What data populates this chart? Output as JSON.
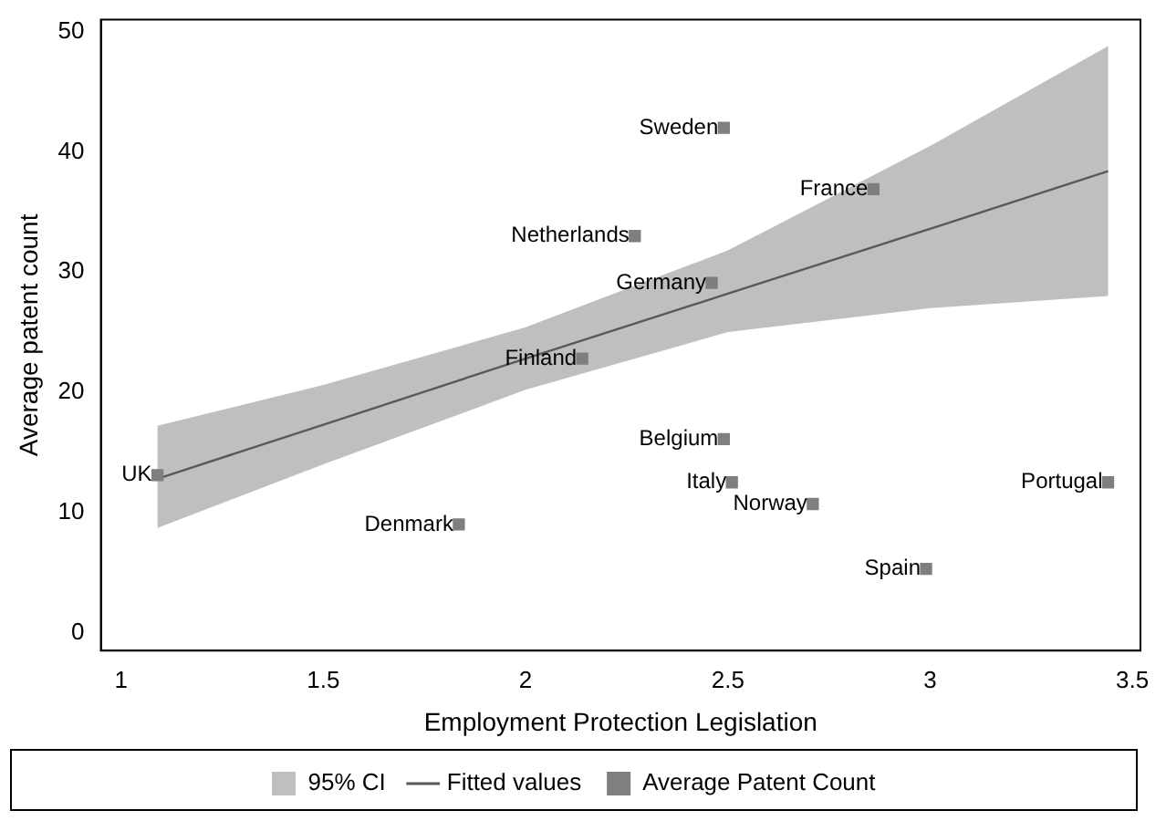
{
  "chart_data": {
    "type": "scatter",
    "xlabel": "Employment Protection Legislation",
    "ylabel": "Average patent count",
    "xlim": [
      0.95,
      3.52
    ],
    "xticks": [
      1,
      1.5,
      2,
      2.5,
      3,
      3.5
    ],
    "ylim": [
      -1.5,
      51
    ],
    "yticks": [
      0,
      10,
      20,
      30,
      40,
      50
    ],
    "legend": "bottom",
    "series": [
      {
        "name": "Fitted values",
        "type": "line",
        "marker": "none",
        "color": "#595959",
        "x": [
          1.09,
          1.5,
          2.0,
          2.5,
          3.0,
          3.44
        ],
        "values": [
          12.8,
          17.3,
          22.8,
          28.2,
          33.6,
          38.4
        ],
        "lower": [
          8.7,
          14.0,
          20.2,
          25.0,
          27.0,
          28.0
        ],
        "upper": [
          17.2,
          20.6,
          25.4,
          31.8,
          40.5,
          48.8
        ]
      },
      {
        "name": "Average Patent Count",
        "type": "scatter",
        "marker": "square",
        "color": "#7f7f7f",
        "x": [
          1.09,
          1.835,
          2.14,
          2.27,
          2.46,
          2.49,
          2.49,
          2.51,
          2.71,
          2.86,
          2.99,
          3.44
        ],
        "values": [
          13.1,
          9.0,
          22.8,
          33.0,
          29.1,
          42.0,
          16.1,
          12.5,
          10.7,
          36.9,
          5.3,
          12.5
        ]
      }
    ],
    "annotations": [
      "95% CI",
      {
        "text": "UK",
        "x": 1.09,
        "y": 13.1
      },
      {
        "text": "Denmark",
        "x": 1.835,
        "y": 9.0
      },
      {
        "text": "Finland",
        "x": 2.14,
        "y": 22.8
      },
      {
        "text": "Netherlands",
        "x": 2.27,
        "y": 33.0
      },
      {
        "text": "Germany",
        "x": 2.46,
        "y": 29.1
      },
      {
        "text": "Sweden",
        "x": 2.49,
        "y": 42.0
      },
      {
        "text": "Belgium",
        "x": 2.49,
        "y": 16.1
      },
      {
        "text": "Italy",
        "x": 2.51,
        "y": 12.5
      },
      {
        "text": "Norway",
        "x": 2.71,
        "y": 10.7
      },
      {
        "text": "France",
        "x": 2.86,
        "y": 36.9
      },
      {
        "text": "Spain",
        "x": 2.99,
        "y": 5.3
      },
      {
        "text": "Portugal",
        "x": 3.44,
        "y": 12.5
      }
    ]
  }
}
